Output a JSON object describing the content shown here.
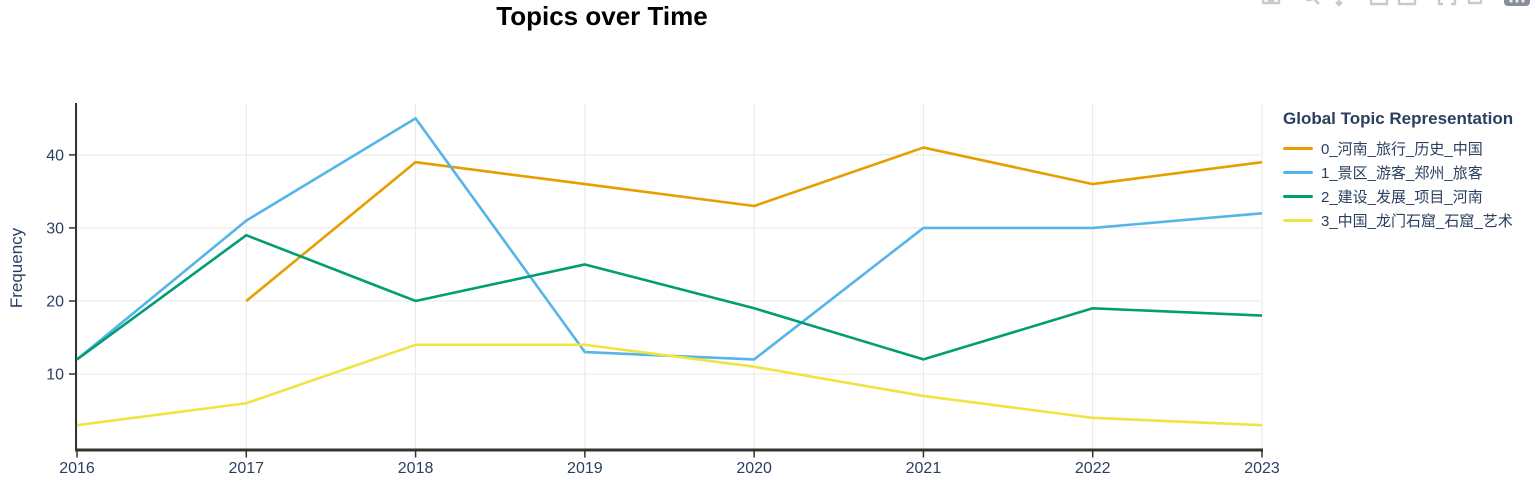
{
  "title": "Topics over Time",
  "y_axis": {
    "label": "Frequency",
    "ticks": [
      10,
      20,
      30,
      40
    ]
  },
  "x_axis": {
    "ticks": [
      2016,
      2017,
      2018,
      2019,
      2020,
      2021,
      2022,
      2023
    ]
  },
  "legend": {
    "title": "Global Topic Representation"
  },
  "modebar": {
    "icons": [
      "camera-icon",
      "zoom-icon",
      "pan-icon",
      "zoom-in-icon",
      "zoom-out-icon",
      "autoscale-icon",
      "reset-axes-icon",
      "plotly-logo-icon"
    ]
  },
  "colors": {
    "background": "#ffffff",
    "grid": "#e8e8e8",
    "axis_line": "#333333",
    "tick_text": "#2a3f5f",
    "title_text": "#000000",
    "modebar_icon": "#c9c9c9",
    "modebar_logo": "#878e99"
  },
  "chart_data": {
    "type": "line",
    "title": "Topics over Time",
    "xlabel": "",
    "ylabel": "Frequency",
    "legend_title": "Global Topic Representation",
    "legend_position": "right",
    "grid": true,
    "x": [
      2016,
      2017,
      2018,
      2019,
      2020,
      2021,
      2022,
      2023
    ],
    "xlim": [
      2016,
      2023
    ],
    "ylim": [
      -0.4,
      47.1
    ],
    "series": [
      {
        "name": "0_河南_旅行_历史_中国",
        "color": "#E69F00",
        "x": [
          2017,
          2018,
          2019,
          2020,
          2021,
          2022,
          2023
        ],
        "values": [
          20,
          39,
          36,
          33,
          41,
          36,
          39
        ]
      },
      {
        "name": "1_景区_游客_郑州_旅客",
        "color": "#56B4E9",
        "x": [
          2016,
          2017,
          2018,
          2019,
          2020,
          2021,
          2022,
          2023
        ],
        "values": [
          12,
          31,
          45,
          13,
          12,
          30,
          30,
          32
        ]
      },
      {
        "name": "2_建设_发展_项目_河南",
        "color": "#009E73",
        "x": [
          2016,
          2017,
          2018,
          2019,
          2020,
          2021,
          2022,
          2023
        ],
        "values": [
          12,
          29,
          20,
          25,
          19,
          12,
          19,
          18
        ]
      },
      {
        "name": "3_中国_龙门石窟_石窟_艺术",
        "color": "#F0E442",
        "x": [
          2016,
          2017,
          2018,
          2019,
          2020,
          2021,
          2022,
          2023
        ],
        "values": [
          3,
          6,
          14,
          14,
          11,
          7,
          4,
          3
        ]
      }
    ]
  }
}
